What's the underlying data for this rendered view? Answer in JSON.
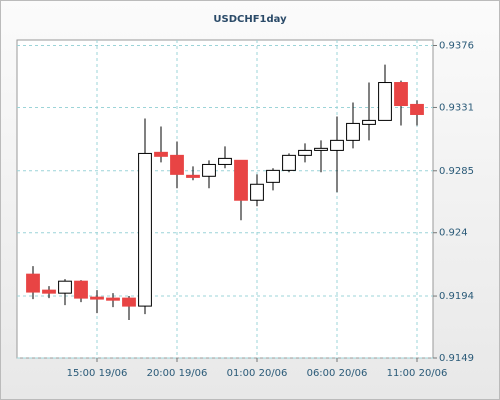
{
  "chart_data": {
    "type": "candlestick",
    "title": "USDCHF1day",
    "categories": [
      null,
      null,
      null,
      null,
      "15:00 19/06",
      null,
      null,
      null,
      null,
      "20:00 19/06",
      null,
      null,
      null,
      null,
      "01:00 20/06",
      null,
      null,
      null,
      null,
      "06:00 20/06",
      null,
      null,
      null,
      null,
      "11:00 20/06"
    ],
    "series": [
      {
        "open": [
          0.92099,
          0.91983,
          0.91961,
          0.92048,
          0.91932,
          0.91925,
          0.91925,
          0.91867,
          0.92984,
          0.92962,
          0.92817,
          0.9281,
          0.92896,
          0.92926,
          0.92636,
          0.92766,
          0.92853,
          0.92962,
          0.92998,
          0.92998,
          0.93071,
          0.93187,
          0.93216,
          0.93491,
          0.93332
        ],
        "high": [
          0.92157,
          0.92012,
          0.92063,
          0.92056,
          0.91983,
          0.91961,
          0.9194,
          0.9323,
          0.93172,
          0.93063,
          0.92882,
          0.92926,
          0.93027,
          0.92926,
          0.92824,
          0.92868,
          0.92976,
          0.93049,
          0.93071,
          0.93244,
          0.93346,
          0.93491,
          0.93621,
          0.93505,
          0.93361
        ],
        "low": [
          0.91918,
          0.91925,
          0.91874,
          0.91896,
          0.91816,
          0.9186,
          0.91766,
          0.91809,
          0.92911,
          0.92723,
          0.92781,
          0.92723,
          0.92868,
          0.92491,
          0.92592,
          0.92708,
          0.92839,
          0.92911,
          0.92839,
          0.92694,
          0.93013,
          0.93071,
          0.93216,
          0.93179,
          0.93179
        ],
        "close": [
          0.91969,
          0.91961,
          0.92048,
          0.91925,
          0.91918,
          0.9191,
          0.91867,
          0.92976,
          0.92955,
          0.92824,
          0.92802,
          0.92896,
          0.9294,
          0.92636,
          0.92752,
          0.92853,
          0.92962,
          0.92998,
          0.93013,
          0.93071,
          0.93194,
          0.93216,
          0.93491,
          0.93324,
          0.93259
        ]
      }
    ],
    "up_color": "#ffffff",
    "down_color": "#e84444",
    "ylim": [
      0.9149,
      0.938
    ],
    "yticks": [
      0.9149,
      0.9194,
      0.924,
      0.9285,
      0.9331,
      0.9376
    ],
    "grid": true
  }
}
